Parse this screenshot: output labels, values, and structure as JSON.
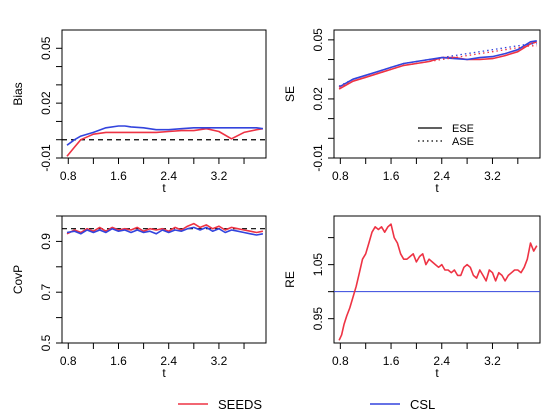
{
  "colors": {
    "seeds": "#ee3344",
    "csl": "#3344dd",
    "ref": "#000000"
  },
  "legend": {
    "placement": "bottom-center",
    "items": [
      "SEEDS",
      "CSL"
    ]
  },
  "chart_data": [
    {
      "id": "bias",
      "type": "line",
      "ylabel": "Bias",
      "xlabel": "t",
      "xlim": [
        0.7,
        3.95
      ],
      "ylim": [
        -0.01,
        0.06
      ],
      "xticks": [
        "0.8",
        "1.6",
        "2.4",
        "3.2"
      ],
      "xtick_values": [
        0.8,
        1.6,
        2.4,
        3.2
      ],
      "yticks": [
        "-0.01",
        "0.02",
        "0.05"
      ],
      "ytick_values": [
        -0.01,
        0.02,
        0.05
      ],
      "minor_yticks": [
        0.0,
        0.01,
        0.03,
        0.04
      ],
      "ref_line": {
        "y": 0.0,
        "style": "dashed"
      },
      "series": [
        {
          "name": "SEEDS",
          "x": [
            0.78,
            0.9,
            1.0,
            1.2,
            1.4,
            1.6,
            1.7,
            1.8,
            2.0,
            2.2,
            2.4,
            2.6,
            2.8,
            3.0,
            3.2,
            3.4,
            3.6,
            3.8,
            3.9
          ],
          "y": [
            -0.009,
            -0.004,
            0.0,
            0.003,
            0.004,
            0.004,
            0.004,
            0.004,
            0.004,
            0.004,
            0.0045,
            0.005,
            0.005,
            0.006,
            0.0045,
            0.0005,
            0.004,
            0.0055,
            0.006
          ]
        },
        {
          "name": "CSL",
          "x": [
            0.78,
            0.9,
            1.0,
            1.2,
            1.4,
            1.6,
            1.7,
            1.8,
            2.0,
            2.2,
            2.4,
            2.6,
            2.8,
            3.0,
            3.2,
            3.4,
            3.6,
            3.8,
            3.9
          ],
          "y": [
            -0.003,
            0.0,
            0.002,
            0.004,
            0.0065,
            0.0075,
            0.0075,
            0.007,
            0.0065,
            0.0055,
            0.0055,
            0.006,
            0.0065,
            0.0065,
            0.0065,
            0.0065,
            0.0065,
            0.0065,
            0.006
          ]
        }
      ]
    },
    {
      "id": "se",
      "type": "line",
      "ylabel": "SE",
      "xlabel": "t",
      "xlim": [
        0.7,
        3.95
      ],
      "ylim": [
        -0.01,
        0.055
      ],
      "xticks": [
        "0.8",
        "1.6",
        "2.4",
        "3.2"
      ],
      "xtick_values": [
        0.8,
        1.6,
        2.4,
        3.2
      ],
      "yticks": [
        "-0.01",
        "0.02",
        "0.05"
      ],
      "ytick_values": [
        -0.01,
        0.02,
        0.05
      ],
      "minor_yticks": [
        0.0,
        0.01,
        0.03,
        0.04
      ],
      "legend_inner": {
        "placement": "bottom-right",
        "items": [
          {
            "label": "ESE",
            "style": "solid"
          },
          {
            "label": "ASE",
            "style": "dotted"
          }
        ]
      },
      "series": [
        {
          "name": "SEEDS ESE",
          "color": "seeds",
          "style": "solid",
          "x": [
            0.78,
            1.0,
            1.2,
            1.4,
            1.6,
            1.8,
            2.0,
            2.2,
            2.4,
            2.6,
            2.8,
            3.0,
            3.2,
            3.4,
            3.6,
            3.8,
            3.9
          ],
          "y": [
            0.025,
            0.029,
            0.031,
            0.033,
            0.035,
            0.037,
            0.038,
            0.039,
            0.041,
            0.041,
            0.04,
            0.04,
            0.0405,
            0.042,
            0.044,
            0.048,
            0.049
          ]
        },
        {
          "name": "CSL ESE",
          "color": "csl",
          "style": "solid",
          "x": [
            0.78,
            1.0,
            1.2,
            1.4,
            1.6,
            1.8,
            2.0,
            2.2,
            2.4,
            2.6,
            2.8,
            3.0,
            3.2,
            3.4,
            3.6,
            3.8,
            3.9
          ],
          "y": [
            0.026,
            0.03,
            0.032,
            0.034,
            0.036,
            0.038,
            0.039,
            0.04,
            0.041,
            0.0405,
            0.04,
            0.041,
            0.0415,
            0.043,
            0.045,
            0.049,
            0.0495
          ]
        },
        {
          "name": "SEEDS ASE",
          "color": "seeds",
          "style": "dotted",
          "x": [
            0.78,
            1.0,
            1.2,
            1.4,
            1.6,
            1.8,
            2.0,
            2.2,
            2.4,
            2.6,
            2.8,
            3.0,
            3.2,
            3.4,
            3.6,
            3.8,
            3.9
          ],
          "y": [
            0.026,
            0.029,
            0.031,
            0.033,
            0.035,
            0.037,
            0.038,
            0.039,
            0.04,
            0.041,
            0.042,
            0.043,
            0.044,
            0.045,
            0.046,
            0.047,
            0.047
          ]
        },
        {
          "name": "CSL ASE",
          "color": "csl",
          "style": "dotted",
          "x": [
            0.78,
            1.0,
            1.2,
            1.4,
            1.6,
            1.8,
            2.0,
            2.2,
            2.4,
            2.6,
            2.8,
            3.0,
            3.2,
            3.4,
            3.6,
            3.8,
            3.9
          ],
          "y": [
            0.0265,
            0.03,
            0.032,
            0.034,
            0.036,
            0.038,
            0.039,
            0.04,
            0.041,
            0.042,
            0.043,
            0.044,
            0.045,
            0.046,
            0.047,
            0.048,
            0.048
          ]
        }
      ]
    },
    {
      "id": "covp",
      "type": "line",
      "ylabel": "CovP",
      "xlabel": "t",
      "xlim": [
        0.7,
        3.95
      ],
      "ylim": [
        0.5,
        1.0
      ],
      "xticks": [
        "0.8",
        "1.6",
        "2.4",
        "3.2"
      ],
      "xtick_values": [
        0.8,
        1.6,
        2.4,
        3.2
      ],
      "yticks": [
        "0.5",
        "0.7",
        "0.9"
      ],
      "ytick_values": [
        0.5,
        0.7,
        0.9
      ],
      "minor_yticks": [
        0.6,
        0.8,
        1.0
      ],
      "ref_line": {
        "y": 0.95,
        "style": "dashed"
      },
      "series": [
        {
          "name": "SEEDS",
          "x": [
            0.78,
            0.9,
            1.0,
            1.1,
            1.2,
            1.3,
            1.4,
            1.5,
            1.6,
            1.7,
            1.8,
            1.9,
            2.0,
            2.1,
            2.2,
            2.3,
            2.4,
            2.5,
            2.6,
            2.7,
            2.8,
            2.9,
            3.0,
            3.1,
            3.2,
            3.3,
            3.4,
            3.5,
            3.6,
            3.7,
            3.8,
            3.9
          ],
          "y": [
            0.93,
            0.945,
            0.935,
            0.95,
            0.94,
            0.955,
            0.94,
            0.955,
            0.945,
            0.95,
            0.945,
            0.955,
            0.94,
            0.95,
            0.945,
            0.95,
            0.94,
            0.955,
            0.945,
            0.96,
            0.97,
            0.955,
            0.965,
            0.95,
            0.96,
            0.945,
            0.955,
            0.95,
            0.945,
            0.94,
            0.935,
            0.94
          ]
        },
        {
          "name": "CSL",
          "x": [
            0.78,
            0.9,
            1.0,
            1.1,
            1.2,
            1.3,
            1.4,
            1.5,
            1.6,
            1.7,
            1.8,
            1.9,
            2.0,
            2.1,
            2.2,
            2.3,
            2.4,
            2.5,
            2.6,
            2.7,
            2.8,
            2.9,
            3.0,
            3.1,
            3.2,
            3.3,
            3.4,
            3.5,
            3.6,
            3.7,
            3.8,
            3.9
          ],
          "y": [
            0.935,
            0.94,
            0.93,
            0.945,
            0.935,
            0.945,
            0.935,
            0.95,
            0.94,
            0.945,
            0.935,
            0.945,
            0.935,
            0.94,
            0.93,
            0.945,
            0.935,
            0.945,
            0.94,
            0.95,
            0.955,
            0.945,
            0.955,
            0.94,
            0.95,
            0.935,
            0.945,
            0.94,
            0.935,
            0.93,
            0.925,
            0.93
          ]
        }
      ]
    },
    {
      "id": "re",
      "type": "line",
      "ylabel": "RE",
      "xlabel": "t",
      "xlim": [
        0.7,
        3.95
      ],
      "ylim": [
        0.905,
        1.14
      ],
      "xticks": [
        "0.8",
        "1.6",
        "2.4",
        "3.2"
      ],
      "xtick_values": [
        0.8,
        1.6,
        2.4,
        3.2
      ],
      "yticks": [
        "0.95",
        "1.05"
      ],
      "ytick_values": [
        0.95,
        1.05
      ],
      "minor_yticks": [
        1.0,
        1.1
      ],
      "ref_line": {
        "y": 1.0,
        "style": "solid",
        "color": "csl"
      },
      "series": [
        {
          "name": "SEEDS",
          "x": [
            0.78,
            0.82,
            0.86,
            0.9,
            0.95,
            1.0,
            1.05,
            1.1,
            1.15,
            1.2,
            1.25,
            1.3,
            1.35,
            1.4,
            1.45,
            1.5,
            1.55,
            1.6,
            1.65,
            1.7,
            1.75,
            1.8,
            1.85,
            1.9,
            1.95,
            2.0,
            2.05,
            2.1,
            2.15,
            2.2,
            2.25,
            2.3,
            2.35,
            2.4,
            2.45,
            2.5,
            2.55,
            2.6,
            2.65,
            2.7,
            2.75,
            2.8,
            2.85,
            2.9,
            2.95,
            3.0,
            3.05,
            3.1,
            3.15,
            3.2,
            3.25,
            3.3,
            3.35,
            3.4,
            3.45,
            3.5,
            3.55,
            3.6,
            3.65,
            3.7,
            3.75,
            3.8,
            3.85,
            3.9
          ],
          "y": [
            0.91,
            0.92,
            0.94,
            0.955,
            0.97,
            0.99,
            1.01,
            1.035,
            1.06,
            1.07,
            1.09,
            1.11,
            1.12,
            1.115,
            1.12,
            1.11,
            1.12,
            1.125,
            1.1,
            1.09,
            1.07,
            1.06,
            1.06,
            1.065,
            1.07,
            1.055,
            1.065,
            1.07,
            1.05,
            1.06,
            1.055,
            1.05,
            1.045,
            1.05,
            1.04,
            1.04,
            1.035,
            1.04,
            1.03,
            1.03,
            1.045,
            1.05,
            1.045,
            1.03,
            1.025,
            1.04,
            1.03,
            1.02,
            1.04,
            1.035,
            1.02,
            1.035,
            1.03,
            1.02,
            1.03,
            1.035,
            1.04,
            1.04,
            1.035,
            1.045,
            1.06,
            1.09,
            1.075,
            1.085
          ]
        }
      ]
    }
  ]
}
